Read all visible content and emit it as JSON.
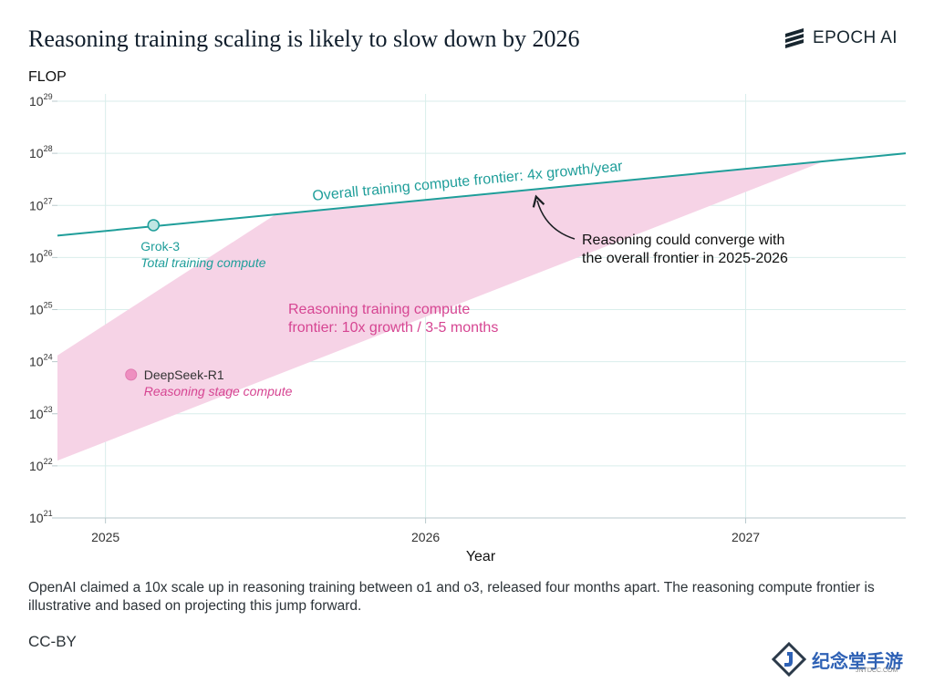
{
  "header": {
    "title": "Reasoning training scaling is likely to slow down by 2026",
    "brand": "EPOCH AI"
  },
  "footer": {
    "note": "OpenAI claimed a 10x scale up in reasoning training between o1 and o3, released four months apart. The reasoning compute frontier is illustrative and based on projecting this jump forward.",
    "license": "CC-BY",
    "watermark": "纪念堂手游",
    "watermark_sub": "JNTDCC.COM"
  },
  "chart_data": {
    "type": "line",
    "xlabel": "Year",
    "ylabel": "FLOP",
    "xlim": [
      2024.85,
      2027.5
    ],
    "ylim_log10": [
      21,
      29
    ],
    "y_scale": "log",
    "x_ticks": [
      2025,
      2026,
      2027
    ],
    "y_ticks_exponent": [
      21,
      22,
      23,
      24,
      25,
      26,
      27,
      28,
      29
    ],
    "grid": true,
    "colors": {
      "overall": "#1f9e9a",
      "reasoning_band": "#f6d3e6",
      "reasoning_text": "#d64592",
      "grid": "#d9eeeb",
      "axis": "#b9c9cc"
    },
    "series": [
      {
        "name": "Overall training compute frontier: 4x growth/year",
        "kind": "line",
        "points": [
          {
            "x": 2024.85,
            "log10_y": 26.42
          },
          {
            "x": 2027.5,
            "log10_y": 28.0
          }
        ]
      },
      {
        "name": "Reasoning training compute frontier: 10x growth / 3-5 months",
        "kind": "band",
        "upper": [
          {
            "x": 2024.85,
            "log10_y": 24.12
          },
          {
            "x": 2025.53,
            "log10_y": 26.82
          },
          {
            "x": 2027.25,
            "log10_y": 27.86
          }
        ],
        "lower": [
          {
            "x": 2024.85,
            "log10_y": 22.1
          },
          {
            "x": 2027.25,
            "log10_y": 27.86
          }
        ]
      }
    ],
    "points": [
      {
        "name": "Grok-3",
        "sublabel": "Total training compute",
        "x": 2025.15,
        "log10_y": 26.62,
        "series": "overall"
      },
      {
        "name": "DeepSeek-R1",
        "sublabel": "Reasoning stage compute",
        "x": 2025.08,
        "log10_y": 23.75,
        "series": "reasoning"
      }
    ],
    "annotations": {
      "overall_label": "Overall training compute frontier: 4x growth/year",
      "reasoning_label_line1": "Reasoning training compute",
      "reasoning_label_line2": "frontier: 10x growth / 3-5 months",
      "converge_line1": "Reasoning could converge with",
      "converge_line2": "the overall frontier in 2025-2026"
    }
  }
}
